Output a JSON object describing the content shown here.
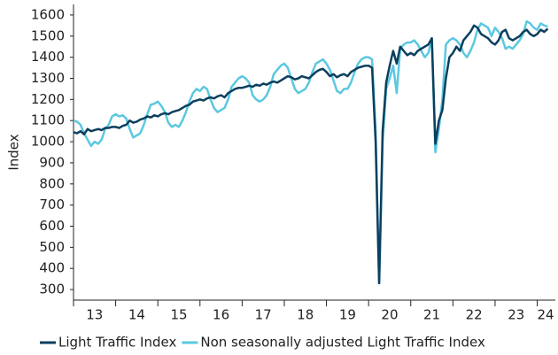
{
  "chart_data": {
    "type": "line",
    "y_label": "Index",
    "xlim": [
      2013,
      2024.43
    ],
    "xticks": [
      {
        "value": 2013.5,
        "label": "13"
      },
      {
        "value": 2014.5,
        "label": "14"
      },
      {
        "value": 2015.5,
        "label": "15"
      },
      {
        "value": 2016.5,
        "label": "16"
      },
      {
        "value": 2017.5,
        "label": "17"
      },
      {
        "value": 2018.5,
        "label": "18"
      },
      {
        "value": 2019.5,
        "label": "19"
      },
      {
        "value": 2020.5,
        "label": "20"
      },
      {
        "value": 2021.5,
        "label": "21"
      },
      {
        "value": 2022.5,
        "label": "22"
      },
      {
        "value": 2023.5,
        "label": "23"
      },
      {
        "value": 2024.2,
        "label": "24"
      }
    ],
    "xminor_ticks": [
      2013,
      2014,
      2015,
      2016,
      2017,
      2018,
      2019,
      2020,
      2021,
      2022,
      2023,
      2024
    ],
    "ylim": [
      250,
      1650
    ],
    "yticks": [
      300,
      400,
      500,
      600,
      700,
      800,
      900,
      1000,
      1100,
      1200,
      1300,
      1400,
      1500,
      1600
    ],
    "legend": "bottom",
    "x": [
      2013,
      2013.083,
      2013.167,
      2013.25,
      2013.333,
      2013.417,
      2013.5,
      2013.583,
      2013.667,
      2013.75,
      2013.833,
      2013.917,
      2014,
      2014.083,
      2014.167,
      2014.25,
      2014.333,
      2014.417,
      2014.5,
      2014.583,
      2014.667,
      2014.75,
      2014.833,
      2014.917,
      2015,
      2015.083,
      2015.167,
      2015.25,
      2015.333,
      2015.417,
      2015.5,
      2015.583,
      2015.667,
      2015.75,
      2015.833,
      2015.917,
      2016,
      2016.083,
      2016.167,
      2016.25,
      2016.333,
      2016.417,
      2016.5,
      2016.583,
      2016.667,
      2016.75,
      2016.833,
      2016.917,
      2017,
      2017.083,
      2017.167,
      2017.25,
      2017.333,
      2017.417,
      2017.5,
      2017.583,
      2017.667,
      2017.75,
      2017.833,
      2017.917,
      2018,
      2018.083,
      2018.167,
      2018.25,
      2018.333,
      2018.417,
      2018.5,
      2018.583,
      2018.667,
      2018.75,
      2018.833,
      2018.917,
      2019,
      2019.083,
      2019.167,
      2019.25,
      2019.333,
      2019.417,
      2019.5,
      2019.583,
      2019.667,
      2019.75,
      2019.833,
      2019.917,
      2020,
      2020.083,
      2020.167,
      2020.25,
      2020.333,
      2020.417,
      2020.5,
      2020.583,
      2020.667,
      2020.75,
      2020.833,
      2020.917,
      2021,
      2021.083,
      2021.167,
      2021.25,
      2021.333,
      2021.417,
      2021.5,
      2021.583,
      2021.667,
      2021.75,
      2021.833,
      2021.917,
      2022,
      2022.083,
      2022.167,
      2022.25,
      2022.333,
      2022.417,
      2022.5,
      2022.583,
      2022.667,
      2022.75,
      2022.833,
      2022.917,
      2023,
      2023.083,
      2023.167,
      2023.25,
      2023.333,
      2023.417,
      2023.5,
      2023.583,
      2023.667,
      2023.75,
      2023.833,
      2023.917,
      2024,
      2024.083,
      2024.167,
      2024.25
    ],
    "series": [
      {
        "name": "Light Traffic Index",
        "color": "#0b3f5e",
        "values": [
          1045,
          1040,
          1050,
          1035,
          1060,
          1050,
          1055,
          1060,
          1055,
          1065,
          1065,
          1070,
          1070,
          1065,
          1075,
          1080,
          1100,
          1090,
          1095,
          1105,
          1110,
          1120,
          1115,
          1125,
          1120,
          1130,
          1135,
          1130,
          1140,
          1145,
          1150,
          1160,
          1170,
          1175,
          1190,
          1195,
          1200,
          1195,
          1205,
          1210,
          1205,
          1215,
          1220,
          1210,
          1230,
          1240,
          1250,
          1255,
          1255,
          1260,
          1265,
          1260,
          1270,
          1265,
          1275,
          1270,
          1280,
          1285,
          1280,
          1290,
          1300,
          1310,
          1305,
          1295,
          1300,
          1310,
          1305,
          1300,
          1315,
          1330,
          1340,
          1345,
          1330,
          1310,
          1320,
          1305,
          1315,
          1320,
          1310,
          1330,
          1340,
          1350,
          1355,
          1360,
          1360,
          1350,
          1000,
          330,
          1050,
          1280,
          1360,
          1430,
          1370,
          1450,
          1430,
          1410,
          1420,
          1410,
          1430,
          1440,
          1450,
          1460,
          1490,
          990,
          1100,
          1150,
          1300,
          1400,
          1420,
          1450,
          1430,
          1480,
          1500,
          1520,
          1550,
          1540,
          1510,
          1500,
          1490,
          1470,
          1460,
          1480,
          1520,
          1530,
          1490,
          1480,
          1490,
          1500,
          1520,
          1530,
          1510,
          1500,
          1510,
          1530,
          1520,
          1535
        ]
      },
      {
        "name": "Non seasonally adjusted Light Traffic Index",
        "color": "#5bc8e0",
        "values": [
          1100,
          1095,
          1080,
          1040,
          1010,
          980,
          1000,
          990,
          1010,
          1060,
          1080,
          1120,
          1130,
          1120,
          1125,
          1110,
          1060,
          1020,
          1030,
          1040,
          1080,
          1130,
          1175,
          1180,
          1190,
          1170,
          1140,
          1090,
          1070,
          1080,
          1070,
          1100,
          1140,
          1190,
          1230,
          1250,
          1240,
          1260,
          1250,
          1200,
          1160,
          1140,
          1150,
          1160,
          1200,
          1260,
          1280,
          1300,
          1310,
          1300,
          1280,
          1220,
          1200,
          1190,
          1200,
          1220,
          1260,
          1320,
          1340,
          1360,
          1370,
          1350,
          1300,
          1250,
          1230,
          1240,
          1250,
          1280,
          1330,
          1370,
          1380,
          1390,
          1370,
          1340,
          1290,
          1240,
          1230,
          1250,
          1250,
          1280,
          1330,
          1370,
          1390,
          1400,
          1400,
          1390,
          1050,
          330,
          1000,
          1250,
          1300,
          1360,
          1230,
          1440,
          1460,
          1470,
          1470,
          1480,
          1460,
          1430,
          1400,
          1420,
          1490,
          950,
          1060,
          1200,
          1460,
          1480,
          1490,
          1480,
          1460,
          1420,
          1400,
          1430,
          1470,
          1530,
          1560,
          1550,
          1540,
          1500,
          1540,
          1520,
          1490,
          1440,
          1450,
          1440,
          1460,
          1480,
          1510,
          1570,
          1560,
          1540,
          1530,
          1560,
          1550,
          1545
        ]
      }
    ]
  }
}
